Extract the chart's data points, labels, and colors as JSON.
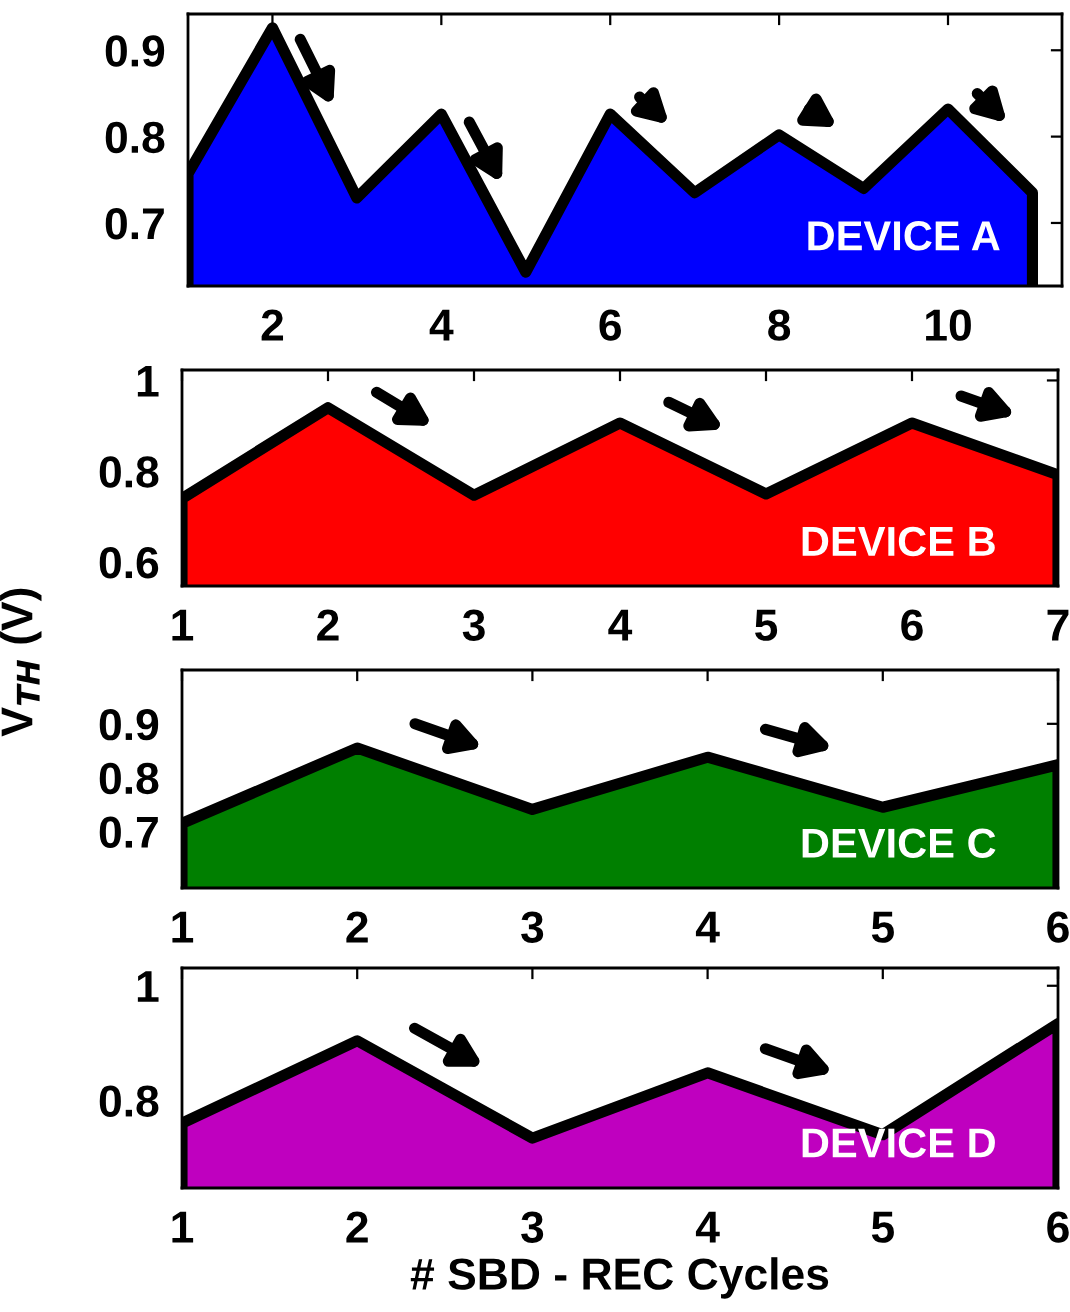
{
  "chart_data": [
    {
      "type": "area",
      "x": [
        1,
        2,
        3,
        4,
        5,
        6,
        7,
        8,
        9,
        10,
        11
      ],
      "xlim": [
        1,
        11.35
      ],
      "xticks": [
        2,
        4,
        6,
        8,
        10
      ],
      "ylim": [
        0.627,
        0.942
      ],
      "yticks": [
        0.7,
        0.8,
        0.9
      ],
      "series": [
        {
          "color": "#0000ff",
          "values": [
            0.757,
            0.926,
            0.729,
            0.826,
            0.643,
            0.826,
            0.735,
            0.802,
            0.74,
            0.832,
            0.735
          ]
        }
      ],
      "annotations": [
        "DEVICE A"
      ]
    },
    {
      "type": "area",
      "x": [
        1,
        2,
        3,
        4,
        5,
        6,
        7
      ],
      "xlim": [
        1,
        7
      ],
      "xticks": [
        1,
        2,
        3,
        4,
        5,
        6,
        7
      ],
      "ylim": [
        0.547,
        1.023
      ],
      "yticks": [
        0.6,
        0.8,
        1
      ],
      "series": [
        {
          "color": "#ff0000",
          "values": [
            0.74,
            0.94,
            0.747,
            0.906,
            0.75,
            0.906,
            0.792
          ]
        }
      ],
      "ylabel": "V$_{TH}$ (V)",
      "annotations": [
        "DEVICE B"
      ]
    },
    {
      "type": "area",
      "x": [
        1,
        2,
        3,
        4,
        5,
        6
      ],
      "xlim": [
        1,
        6
      ],
      "xticks": [
        1,
        2,
        3,
        4,
        5,
        6
      ],
      "ylim": [
        0.595,
        1.0
      ],
      "yticks": [
        0.7,
        0.8,
        0.9
      ],
      "series": [
        {
          "color": "#007f00",
          "values": [
            0.715,
            0.855,
            0.741,
            0.838,
            0.745,
            0.824
          ]
        }
      ],
      "annotations": [
        "DEVICE C"
      ]
    },
    {
      "type": "area",
      "x": [
        1,
        2,
        3,
        4,
        5,
        6
      ],
      "xlim": [
        1,
        6
      ],
      "xticks": [
        1,
        2,
        3,
        4,
        5,
        6
      ],
      "ylim": [
        0.647,
        1.031
      ],
      "yticks": [
        0.8,
        1
      ],
      "series": [
        {
          "color": "#bf00bf",
          "values": [
            0.76,
            0.904,
            0.734,
            0.848,
            0.74,
            0.934
          ]
        }
      ],
      "xlabel": "# SBD - REC Cycles",
      "annotations": [
        "DEVICE D"
      ]
    }
  ]
}
